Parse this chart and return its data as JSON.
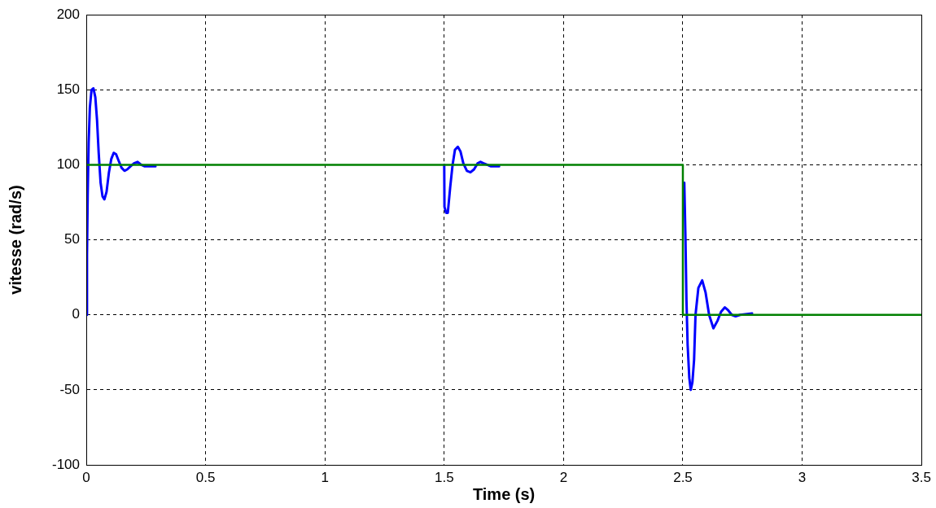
{
  "chart_data": {
    "type": "line",
    "xlabel": "Time (s)",
    "ylabel": "vitesse (rad/s)",
    "xlim": [
      0,
      3.5
    ],
    "xticks": [
      0,
      0.5,
      1,
      1.5,
      2,
      2.5,
      3,
      3.5
    ],
    "ylim": [
      -100,
      200
    ],
    "yticks": [
      -100,
      -50,
      0,
      50,
      100,
      150,
      200
    ],
    "grid": true,
    "marker": "none",
    "series": [
      {
        "color": "#0000ff",
        "x": [
          0,
          0.003,
          0.006,
          0.01,
          0.015,
          0.022,
          0.03,
          0.038,
          0.045,
          0.052,
          0.06,
          0.068,
          0.076,
          0.085,
          0.095,
          0.105,
          0.115,
          0.125,
          0.135,
          0.148,
          0.16,
          0.172,
          0.185,
          0.2,
          0.215,
          0.23,
          0.245,
          0.29,
          0.9,
          1.5,
          1.501,
          1.508,
          1.515,
          1.525,
          1.535,
          1.545,
          1.557,
          1.568,
          1.58,
          1.595,
          1.61,
          1.625,
          1.64,
          1.652,
          1.665,
          1.68,
          1.696,
          1.73,
          2.1,
          2.506,
          2.511,
          2.515,
          2.52,
          2.527,
          2.533,
          2.54,
          2.547,
          2.553,
          2.565,
          2.581,
          2.595,
          2.61,
          2.628,
          2.645,
          2.66,
          2.676,
          2.69,
          2.705,
          2.721,
          2.74,
          2.79
        ],
        "values": [
          0,
          40,
          80,
          115,
          138,
          150,
          151,
          145,
          130,
          108,
          88,
          79,
          77,
          82,
          95,
          104,
          108,
          107,
          103,
          98,
          96,
          97,
          99,
          101,
          102,
          100,
          99,
          99,
          null,
          100,
          72,
          68,
          68,
          85,
          100,
          110,
          112,
          109,
          101,
          96,
          95,
          97,
          101,
          102,
          101,
          100,
          99,
          99,
          null,
          88,
          50,
          10,
          -20,
          -42,
          -50,
          -45,
          -30,
          0,
          18,
          23,
          15,
          0,
          -9,
          -4,
          2,
          5,
          3,
          0,
          -1,
          0,
          1
        ]
      },
      {
        "color": "#008000",
        "x": [
          0,
          2.5,
          2.5,
          3.5
        ],
        "values": [
          100,
          100,
          0,
          0
        ]
      }
    ]
  }
}
